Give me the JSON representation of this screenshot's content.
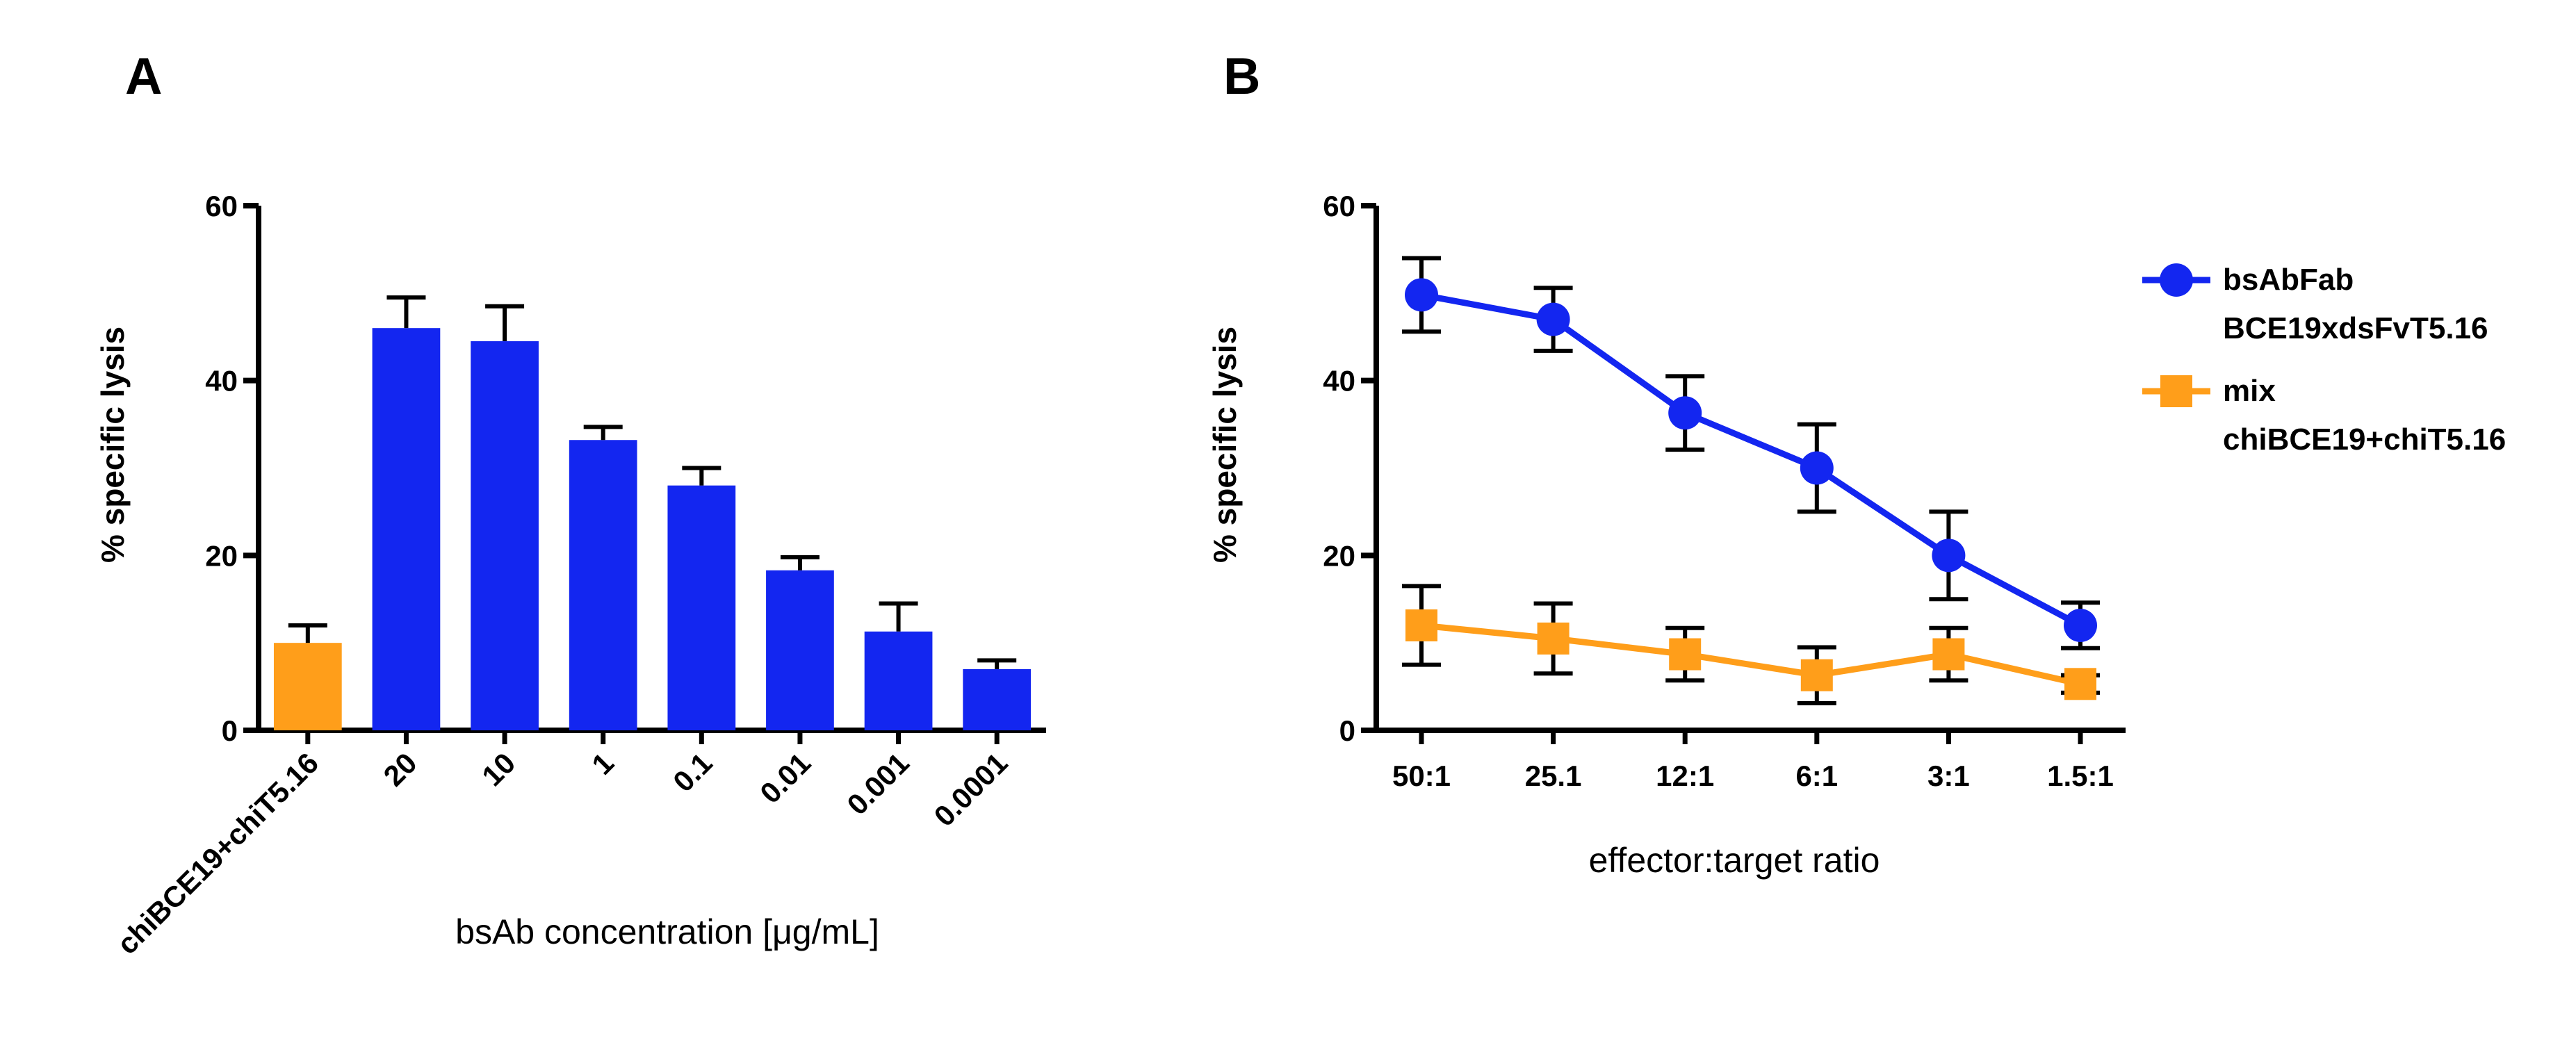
{
  "colors": {
    "blue": "#1326f0",
    "orange": "#ff9e1a",
    "axis": "#000000"
  },
  "chart_data": [
    {
      "panel": "A",
      "type": "bar",
      "title": "",
      "xlabel": "bsAb concentration [μg/mL]",
      "ylabel": "% specific lysis",
      "ylim": [
        0,
        60
      ],
      "yticks": [
        "0",
        "20",
        "40",
        "60"
      ],
      "categories": [
        "chiBCE19+chiT5.16",
        "20",
        "10",
        "1",
        "0.1",
        "0.01",
        "0.001",
        "0.0001"
      ],
      "values": [
        10,
        46,
        44.5,
        33.2,
        28,
        18.3,
        11.3,
        7
      ],
      "errors": [
        2,
        3.5,
        4,
        1.5,
        2,
        1.5,
        3.2,
        1
      ],
      "bar_colors": [
        "orange",
        "blue",
        "blue",
        "blue",
        "blue",
        "blue",
        "blue",
        "blue"
      ]
    },
    {
      "panel": "B",
      "type": "line",
      "title": "",
      "xlabel": "effector:target ratio",
      "ylabel": "% specific lysis",
      "ylim": [
        0,
        60
      ],
      "yticks": [
        "0",
        "20",
        "40",
        "60"
      ],
      "categories": [
        "50:1",
        "25.1",
        "12:1",
        "6:1",
        "3:1",
        "1.5:1"
      ],
      "legend_position": "right",
      "series": [
        {
          "name": "bsAbFab BCE19xdsFvT5.16",
          "legend_lines": [
            "bsAbFab",
            "BCE19xdsFvT5.16"
          ],
          "color": "blue",
          "marker": "circle",
          "values": [
            49.8,
            47,
            36.3,
            30,
            20,
            12
          ],
          "errors": [
            4.2,
            3.6,
            4.2,
            5,
            5,
            2.6
          ]
        },
        {
          "name": "mix chiBCE19+chiT5.16",
          "legend_lines": [
            "mix",
            "chiBCE19+chiT5.16"
          ],
          "color": "orange",
          "marker": "square",
          "values": [
            12,
            10.5,
            8.7,
            6.3,
            8.7,
            5.3
          ],
          "errors": [
            4.5,
            4,
            3,
            3.2,
            3,
            1
          ]
        }
      ]
    }
  ]
}
